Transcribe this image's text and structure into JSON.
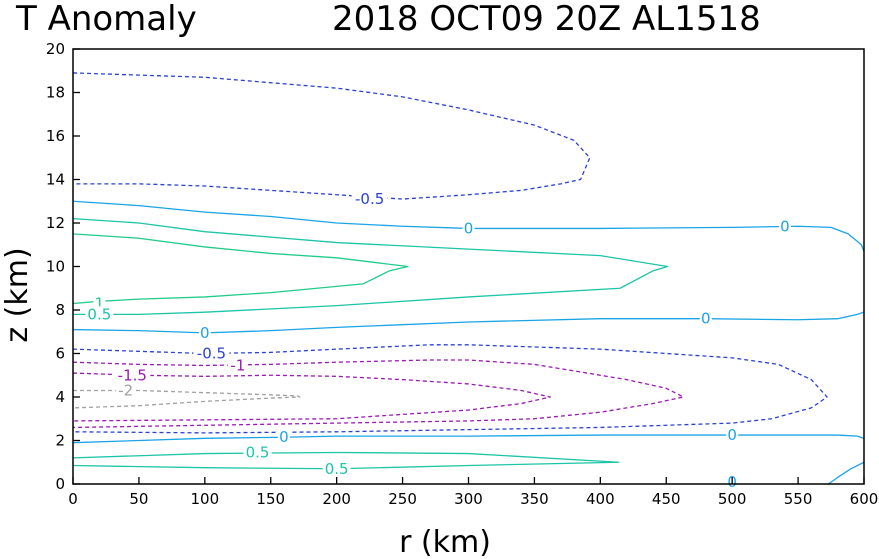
{
  "chart_data": {
    "type": "contour",
    "title_left": "T Anomaly",
    "title_right": "2018 OCT09 20Z   AL1518",
    "xlabel": "r (km)",
    "ylabel": "z (km)",
    "xlim": [
      0,
      600
    ],
    "ylim": [
      0,
      20
    ],
    "xticks": [
      0,
      50,
      100,
      150,
      200,
      250,
      300,
      350,
      400,
      450,
      500,
      550,
      600
    ],
    "yticks": [
      0,
      2,
      4,
      6,
      8,
      10,
      12,
      14,
      16,
      18,
      20
    ],
    "grid": false,
    "colors": {
      "c_-2": "#a0a0a0",
      "c_-1.5": "#9a1ab4",
      "c_-1": "#9a1ab4",
      "c_-0.5": "#2a40d8",
      "c_0": "#1aa4e6",
      "c_0.5": "#1cc4a8",
      "c_1": "#22cc88"
    },
    "contours": [
      {
        "level": -0.5,
        "label": "-0.5",
        "color": "#2a40d8",
        "dashed": true,
        "points": [
          [
            0,
            18.9
          ],
          [
            100,
            18.7
          ],
          [
            200,
            18.2
          ],
          [
            250,
            17.8
          ],
          [
            300,
            17.2
          ],
          [
            350,
            16.5
          ],
          [
            380,
            15.8
          ],
          [
            392,
            15
          ],
          [
            385,
            14
          ],
          [
            370,
            13.8
          ],
          [
            340,
            13.5
          ],
          [
            300,
            13.3
          ],
          [
            250,
            13.1
          ],
          [
            200,
            13.3
          ],
          [
            150,
            13.5
          ],
          [
            100,
            13.7
          ],
          [
            50,
            13.8
          ],
          [
            0,
            13.8
          ]
        ],
        "label_at": [
          225,
          13.1
        ]
      },
      {
        "level": 0,
        "label": "0",
        "color": "#1aa4e6",
        "dashed": false,
        "points": [
          [
            0,
            13
          ],
          [
            50,
            12.8
          ],
          [
            100,
            12.5
          ],
          [
            150,
            12.3
          ],
          [
            200,
            12.0
          ],
          [
            250,
            11.85
          ],
          [
            300,
            11.75
          ],
          [
            400,
            11.75
          ],
          [
            500,
            11.8
          ],
          [
            550,
            11.85
          ],
          [
            575,
            11.8
          ],
          [
            588,
            11.5
          ],
          [
            598,
            11
          ],
          [
            600,
            10.7
          ]
        ],
        "label_at": [
          300,
          11.75
        ],
        "label_at2": [
          540,
          11.85
        ]
      },
      {
        "level": 1,
        "label": "1",
        "color": "#22cc88",
        "dashed": false,
        "points": [
          [
            0,
            11.5
          ],
          [
            50,
            11.3
          ],
          [
            100,
            10.9
          ],
          [
            150,
            10.6
          ],
          [
            200,
            10.4
          ],
          [
            254,
            10.0
          ],
          [
            240,
            9.8
          ],
          [
            220,
            9.2
          ],
          [
            150,
            8.8
          ],
          [
            100,
            8.6
          ],
          [
            50,
            8.5
          ],
          [
            20,
            8.4
          ],
          [
            0,
            8.3
          ]
        ],
        "label_at": [
          20,
          8.3
        ]
      },
      {
        "level": 0.5,
        "label": "0.5",
        "color": "#1cc4a8",
        "dashed": false,
        "points": [
          [
            0,
            12.2
          ],
          [
            50,
            12
          ],
          [
            100,
            11.6
          ],
          [
            200,
            11.1
          ],
          [
            300,
            10.8
          ],
          [
            400,
            10.5
          ],
          [
            451,
            10.0
          ],
          [
            440,
            9.8
          ],
          [
            415,
            9.0
          ],
          [
            300,
            8.6
          ],
          [
            200,
            8.2
          ],
          [
            100,
            7.9
          ],
          [
            50,
            7.8
          ],
          [
            0,
            7.8
          ]
        ],
        "label_at": [
          20,
          7.8
        ]
      },
      {
        "level": 0,
        "label": "0",
        "color": "#1aa4e6",
        "dashed": false,
        "points": [
          [
            0,
            7.1
          ],
          [
            50,
            7.05
          ],
          [
            100,
            6.95
          ],
          [
            150,
            7.05
          ],
          [
            200,
            7.2
          ],
          [
            300,
            7.45
          ],
          [
            400,
            7.6
          ],
          [
            480,
            7.6
          ],
          [
            550,
            7.55
          ],
          [
            580,
            7.6
          ],
          [
            595,
            7.8
          ],
          [
            600,
            7.9
          ]
        ],
        "label_at": [
          100,
          6.95
        ],
        "label_at2": [
          480,
          7.6
        ]
      },
      {
        "level": -0.5,
        "label": "-0.5",
        "color": "#2a40d8",
        "dashed": true,
        "points": [
          [
            0,
            6.2
          ],
          [
            50,
            6.1
          ],
          [
            100,
            6.0
          ],
          [
            150,
            6.05
          ],
          [
            200,
            6.2
          ],
          [
            270,
            6.4
          ],
          [
            300,
            6.4
          ],
          [
            400,
            6.2
          ],
          [
            500,
            5.8
          ],
          [
            535,
            5.5
          ],
          [
            560,
            4.8
          ],
          [
            572,
            4.0
          ],
          [
            560,
            3.5
          ],
          [
            530,
            3.0
          ],
          [
            500,
            2.8
          ],
          [
            400,
            2.6
          ],
          [
            300,
            2.5
          ],
          [
            200,
            2.4
          ],
          [
            100,
            2.35
          ],
          [
            0,
            2.4
          ]
        ],
        "label_at": [
          105,
          6.0
        ]
      },
      {
        "level": -1,
        "label": "-1",
        "color": "#9a1ab4",
        "dashed": true,
        "points": [
          [
            0,
            5.6
          ],
          [
            50,
            5.5
          ],
          [
            100,
            5.45
          ],
          [
            150,
            5.5
          ],
          [
            200,
            5.6
          ],
          [
            270,
            5.7
          ],
          [
            300,
            5.7
          ],
          [
            350,
            5.5
          ],
          [
            420,
            4.8
          ],
          [
            450,
            4.4
          ],
          [
            463,
            4.0
          ],
          [
            440,
            3.7
          ],
          [
            400,
            3.3
          ],
          [
            350,
            3.0
          ],
          [
            300,
            2.9
          ],
          [
            200,
            2.8
          ],
          [
            100,
            2.7
          ],
          [
            0,
            2.6
          ]
        ],
        "label_at": [
          125,
          5.45
        ]
      },
      {
        "level": -1.5,
        "label": "-1.5",
        "color": "#9a1ab4",
        "dashed": true,
        "points": [
          [
            0,
            5.1
          ],
          [
            50,
            5.0
          ],
          [
            100,
            4.95
          ],
          [
            150,
            5.0
          ],
          [
            200,
            4.95
          ],
          [
            250,
            4.8
          ],
          [
            300,
            4.6
          ],
          [
            340,
            4.3
          ],
          [
            362,
            4.0
          ],
          [
            340,
            3.7
          ],
          [
            300,
            3.4
          ],
          [
            250,
            3.2
          ],
          [
            200,
            3.0
          ],
          [
            100,
            2.95
          ],
          [
            0,
            2.9
          ]
        ],
        "label_at": [
          45,
          5.0
        ]
      },
      {
        "level": -2,
        "label": "-2",
        "color": "#a0a0a0",
        "dashed": true,
        "points": [
          [
            0,
            4.3
          ],
          [
            50,
            4.3
          ],
          [
            100,
            4.2
          ],
          [
            150,
            4.1
          ],
          [
            170,
            4.05
          ],
          [
            172,
            4.0
          ],
          [
            150,
            3.95
          ],
          [
            100,
            3.8
          ],
          [
            50,
            3.6
          ],
          [
            0,
            3.5
          ]
        ],
        "label_at": [
          40,
          4.3
        ]
      },
      {
        "level": 0,
        "label": "0",
        "color": "#1aa4e6",
        "dashed": false,
        "points": [
          [
            0,
            1.9
          ],
          [
            50,
            2.0
          ],
          [
            100,
            2.1
          ],
          [
            160,
            2.15
          ],
          [
            200,
            2.2
          ],
          [
            300,
            2.2
          ],
          [
            400,
            2.25
          ],
          [
            500,
            2.25
          ],
          [
            580,
            2.25
          ],
          [
            595,
            2.2
          ],
          [
            600,
            2.1
          ]
        ],
        "label_at": [
          160,
          2.15
        ],
        "label_at2": [
          500,
          2.25
        ]
      },
      {
        "level": 0.5,
        "label": "0.5",
        "color": "#1cc4a8",
        "dashed": false,
        "points": [
          [
            0,
            1.2
          ],
          [
            50,
            1.3
          ],
          [
            100,
            1.4
          ],
          [
            200,
            1.45
          ],
          [
            300,
            1.4
          ],
          [
            414,
            1.0
          ],
          [
            300,
            0.85
          ],
          [
            200,
            0.7
          ],
          [
            100,
            0.75
          ],
          [
            50,
            0.8
          ],
          [
            0,
            0.85
          ]
        ],
        "label_at": [
          140,
          1.45
        ],
        "label_at2": [
          200,
          0.7
        ]
      },
      {
        "level": 0,
        "label": "0",
        "color": "#1aa4e6",
        "dashed": false,
        "points": [
          [
            573,
            0
          ],
          [
            580,
            0.3
          ],
          [
            590,
            0.7
          ],
          [
            600,
            1.0
          ]
        ],
        "label_at": [
          500,
          0.1
        ]
      }
    ]
  }
}
